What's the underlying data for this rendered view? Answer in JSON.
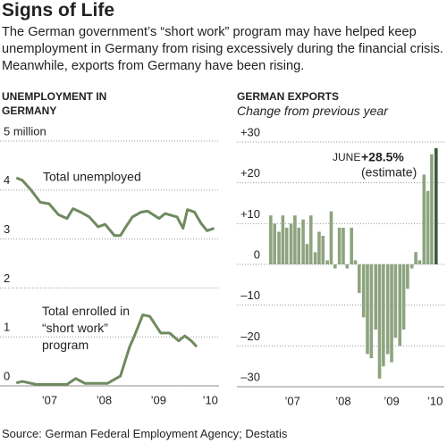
{
  "header": {
    "title": "Signs of Life",
    "description": "The German government’s “short work” program may have helped keep unemployment in Germany from rising excessively during the financial crisis. Meanwhile, exports from Germany have been rising."
  },
  "chart_data": [
    {
      "type": "line",
      "title": "UNEMPLOYMENT IN GERMANY",
      "xlim": [
        2006.59,
        2010.61
      ],
      "ylim": [
        0,
        5
      ],
      "yticks": [
        0,
        1,
        2,
        3,
        4,
        {
          "value": 5,
          "label": "5 million"
        }
      ],
      "xticks": [
        {
          "value": 2007.5,
          "label": "’07"
        },
        {
          "value": 2008.5,
          "label": "’08"
        },
        {
          "value": 2009.5,
          "label": "’09"
        },
        {
          "value": 2010.45,
          "label": "’10"
        }
      ],
      "grid": true,
      "series": [
        {
          "name": "Total unemployed",
          "color": "#6f8a5f",
          "x": [
            2006.89,
            2007.0,
            2007.16,
            2007.33,
            2007.49,
            2007.66,
            2007.82,
            2007.93,
            2008.07,
            2008.23,
            2008.39,
            2008.52,
            2008.69,
            2008.8,
            2008.9,
            2009.02,
            2009.18,
            2009.3,
            2009.51,
            2009.62,
            2009.84,
            2009.95,
            2010.03,
            2010.16,
            2010.28,
            2010.39,
            2010.52
          ],
          "values": [
            4.25,
            4.2,
            4.0,
            3.75,
            3.72,
            3.5,
            3.42,
            3.62,
            3.55,
            3.45,
            3.25,
            3.3,
            3.07,
            3.07,
            3.25,
            3.45,
            3.55,
            3.57,
            3.42,
            3.52,
            3.45,
            3.22,
            3.6,
            3.55,
            3.32,
            3.17,
            3.22
          ]
        },
        {
          "name": "Total enrolled in “short work” program",
          "color": "#6f8a5f",
          "x": [
            2006.89,
            2007.0,
            2007.25,
            2007.82,
            2007.98,
            2008.15,
            2008.56,
            2008.8,
            2008.97,
            2009.05,
            2009.21,
            2009.34,
            2009.54,
            2009.7,
            2009.87,
            2009.98,
            2010.1,
            2010.2
          ],
          "values": [
            0.06,
            0.09,
            0.03,
            0.03,
            0.15,
            0.05,
            0.05,
            0.2,
            0.8,
            1.0,
            1.45,
            1.42,
            1.08,
            1.08,
            0.92,
            1.02,
            0.92,
            0.8
          ]
        }
      ]
    },
    {
      "type": "bar",
      "title": "GERMAN EXPORTS",
      "subtitle": "Change from previous year",
      "xlim": [
        2006.3,
        2010.59
      ],
      "ylim": [
        -30,
        30
      ],
      "yticks": [
        {
          "value": -30,
          "label": "–30"
        },
        {
          "value": -20,
          "label": "–20"
        },
        {
          "value": -10,
          "label": "–10"
        },
        0,
        {
          "value": 10,
          "label": "+10"
        },
        {
          "value": 20,
          "label": "+20"
        },
        {
          "value": 30,
          "label": "+30"
        }
      ],
      "xticks": [
        {
          "value": 2007.45,
          "label": "’07"
        },
        {
          "value": 2008.5,
          "label": "’08"
        },
        {
          "value": 2009.5,
          "label": "’09"
        },
        {
          "value": 2010.4,
          "label": "’10"
        }
      ],
      "grid": true,
      "color": "#8da47f",
      "highlight": {
        "index": 41,
        "color": "#3e5b3c"
      },
      "annotation": "JUNE",
      "annotation_note": "(estimate)",
      "x": [
        2007.0,
        2007.08,
        2007.17,
        2007.25,
        2007.33,
        2007.42,
        2007.5,
        2007.58,
        2007.67,
        2007.75,
        2007.83,
        2007.92,
        2008.0,
        2008.08,
        2008.17,
        2008.25,
        2008.33,
        2008.42,
        2008.5,
        2008.58,
        2008.67,
        2008.75,
        2008.83,
        2008.92,
        2009.0,
        2009.08,
        2009.17,
        2009.25,
        2009.33,
        2009.42,
        2009.5,
        2009.58,
        2009.67,
        2009.75,
        2009.83,
        2009.92,
        2010.0,
        2010.08,
        2010.17,
        2010.25,
        2010.33,
        2010.42
      ],
      "values": [
        12,
        10,
        8,
        12,
        9,
        10,
        12,
        9,
        11,
        5,
        12,
        3,
        8,
        7,
        1,
        13,
        -1,
        9,
        9,
        -1,
        9,
        1,
        -7,
        -13,
        -22,
        -23,
        -16,
        -28,
        -25,
        -22,
        -24,
        -18,
        -20,
        -16,
        -6,
        -1,
        3,
        1,
        22,
        18,
        27,
        28.5
      ],
      "value_labels": [
        null,
        null,
        null,
        null,
        null,
        null,
        null,
        null,
        null,
        null,
        null,
        null,
        null,
        null,
        null,
        null,
        null,
        null,
        null,
        null,
        null,
        null,
        null,
        null,
        null,
        null,
        null,
        null,
        null,
        null,
        null,
        null,
        null,
        null,
        null,
        null,
        null,
        null,
        null,
        null,
        null,
        "+28.5%"
      ]
    }
  ],
  "source": "Source: German Federal Employment Agency; Destatis"
}
